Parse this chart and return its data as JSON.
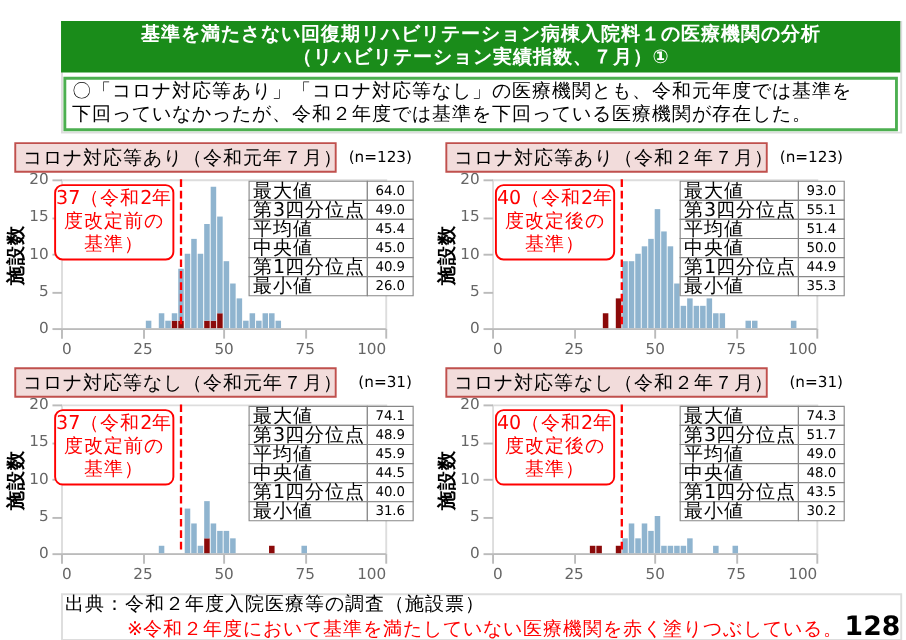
{
  "chart_data": [
    {
      "type": "other",
      "title": "基準を満たさない回復期リハビリテーション病棟入院料１の医療機関の分析（リハビリテーション実績指数、７月）①",
      "annotations": [
        "〇「コロナ対応等あり」「コロナ対応等なし」の医療機関とも、令和元年度では基準を下回っていなかったが、令和２年度では基準を下回っている医療機関が存在した。",
        "出典：令和２年度入院医療等の調査（施設票）",
        "※令和２年度において基準を満たしていない医療機関を赤く塗りつぶしている。",
        "128"
      ]
    },
    {
      "type": "bar",
      "title": "コロナ対応等あり（令和元年７月）",
      "subtitle": "(n=123)",
      "ylabel": "施設数",
      "stacked": true,
      "x": [
        27,
        29,
        31,
        33,
        35,
        37,
        39,
        41,
        43,
        45,
        47,
        49,
        51,
        53,
        55,
        57,
        59,
        61,
        63,
        65,
        67
      ],
      "series": [
        {
          "color": "#8b0a0a",
          "values": [
            0,
            0,
            0,
            0,
            1,
            1,
            0,
            0,
            0,
            1,
            1,
            2,
            0,
            0,
            0,
            0,
            0,
            0,
            0,
            0,
            0
          ]
        },
        {
          "color": "#8fb4cf",
          "values": [
            1,
            0,
            2,
            1,
            1,
            7,
            10,
            12,
            10,
            13,
            18,
            13,
            9,
            6,
            4,
            1,
            2,
            1,
            2,
            2,
            1
          ]
        }
      ],
      "xlim": [
        0,
        100
      ],
      "xticks": [
        0,
        25,
        50,
        75,
        100
      ],
      "ylim": [
        0,
        20
      ],
      "yticks": [
        0,
        5,
        10,
        15,
        20
      ],
      "ref_lines": [
        {
          "axis": "x",
          "value": 37,
          "label": "37（令和2年度改定前の基準）",
          "color": "#ff0000",
          "line_style": "dashed"
        }
      ],
      "annotations": [
        "最大値",
        "64.0",
        "第3四分位点",
        "49.0",
        "平均値",
        "45.4",
        "中央値",
        "45.0",
        "第1四分位点",
        "40.9",
        "最小値",
        "26.0"
      ]
    },
    {
      "type": "bar",
      "title": "コロナ対応等あり（令和２年７月）",
      "subtitle": "(n=123)",
      "ylabel": "施設数",
      "stacked": true,
      "x": [
        35,
        37,
        39,
        41,
        43,
        45,
        47,
        49,
        51,
        53,
        55,
        57,
        59,
        61,
        63,
        65,
        67,
        69,
        71,
        73,
        75,
        77,
        79,
        81,
        83,
        85,
        87,
        89,
        91,
        93
      ],
      "series": [
        {
          "color": "#8b0a0a",
          "values": [
            2,
            0,
            4,
            0,
            0,
            0,
            0,
            0,
            0,
            0,
            0,
            0,
            0,
            0,
            0,
            0,
            0,
            0,
            0,
            0,
            0,
            0,
            0,
            0,
            0,
            0,
            0,
            0,
            0,
            0
          ]
        },
        {
          "color": "#8fb4cf",
          "values": [
            0,
            0,
            0,
            9,
            9,
            10,
            11,
            12,
            16,
            13,
            11,
            6,
            3,
            4,
            3,
            3,
            4,
            2,
            2,
            0,
            0,
            0,
            1,
            1,
            0,
            0,
            0,
            0,
            0,
            1
          ]
        }
      ],
      "xlim": [
        0,
        100
      ],
      "xticks": [
        0,
        25,
        50,
        75,
        100
      ],
      "ylim": [
        0,
        20
      ],
      "yticks": [
        0,
        5,
        10,
        15,
        20
      ],
      "ref_lines": [
        {
          "axis": "x",
          "value": 40,
          "label": "40（令和2年度改定後の基準）",
          "color": "#ff0000",
          "line_style": "dashed"
        }
      ],
      "annotations": [
        "最大値",
        "93.0",
        "第3四分位点",
        "55.1",
        "平均値",
        "51.4",
        "中央値",
        "50.0",
        "第1四分位点",
        "44.9",
        "最小値",
        "35.3"
      ]
    },
    {
      "type": "bar",
      "title": "コロナ対応等なし（令和元年７月）",
      "subtitle": "(n=31)",
      "ylabel": "施設数",
      "stacked": true,
      "x": [
        31,
        33,
        35,
        37,
        39,
        41,
        43,
        45,
        47,
        49,
        51,
        53,
        55,
        57,
        59,
        61,
        63,
        65,
        67,
        69,
        71,
        73,
        75
      ],
      "series": [
        {
          "color": "#8b0a0a",
          "values": [
            0,
            0,
            0,
            0,
            0,
            0,
            0,
            2,
            0,
            0,
            0,
            0,
            0,
            0,
            0,
            0,
            0,
            1,
            0,
            0,
            0,
            0,
            0
          ]
        },
        {
          "color": "#8fb4cf",
          "values": [
            1,
            0,
            0,
            0,
            6,
            4,
            1,
            5,
            4,
            3,
            3,
            2,
            0,
            0,
            0,
            0,
            0,
            0,
            0,
            0,
            0,
            0,
            1
          ]
        }
      ],
      "xlim": [
        0,
        100
      ],
      "xticks": [
        0,
        25,
        50,
        75,
        100
      ],
      "ylim": [
        0,
        20
      ],
      "yticks": [
        0,
        5,
        10,
        15,
        20
      ],
      "ref_lines": [
        {
          "axis": "x",
          "value": 37,
          "label": "37（令和2年度改定前の基準）",
          "color": "#ff0000",
          "line_style": "dashed"
        }
      ],
      "annotations": [
        "最大値",
        "74.1",
        "第3四分位点",
        "48.9",
        "平均値",
        "45.9",
        "中央値",
        "44.5",
        "第1四分位点",
        "40.0",
        "最小値",
        "31.6"
      ]
    },
    {
      "type": "bar",
      "title": "コロナ対応等なし（令和２年７月）",
      "subtitle": "(n=31)",
      "ylabel": "施設数",
      "stacked": true,
      "x": [
        31,
        33,
        35,
        37,
        39,
        41,
        43,
        45,
        47,
        49,
        51,
        53,
        55,
        57,
        59,
        61,
        63,
        65,
        67,
        69,
        71,
        73,
        75
      ],
      "series": [
        {
          "color": "#8b0a0a",
          "values": [
            1,
            1,
            0,
            0,
            1,
            0,
            0,
            0,
            0,
            0,
            0,
            0,
            0,
            0,
            0,
            0,
            0,
            0,
            0,
            0,
            0,
            0,
            0
          ]
        },
        {
          "color": "#8fb4cf",
          "values": [
            0,
            0,
            0,
            0,
            0,
            2,
            4,
            2,
            4,
            3,
            5,
            1,
            1,
            1,
            1,
            2,
            0,
            0,
            0,
            1,
            0,
            0,
            1
          ]
        }
      ],
      "xlim": [
        0,
        100
      ],
      "xticks": [
        0,
        25,
        50,
        75,
        100
      ],
      "ylim": [
        0,
        20
      ],
      "yticks": [
        0,
        5,
        10,
        15,
        20
      ],
      "ref_lines": [
        {
          "axis": "x",
          "value": 40,
          "label": "40（令和2年度改定後の基準）",
          "color": "#ff0000",
          "line_style": "dashed"
        }
      ],
      "annotations": [
        "最大値",
        "74.3",
        "第3四分位点",
        "51.7",
        "平均値",
        "49.0",
        "中央値",
        "48.0",
        "第1四分位点",
        "43.5",
        "最小値",
        "30.2"
      ]
    }
  ]
}
